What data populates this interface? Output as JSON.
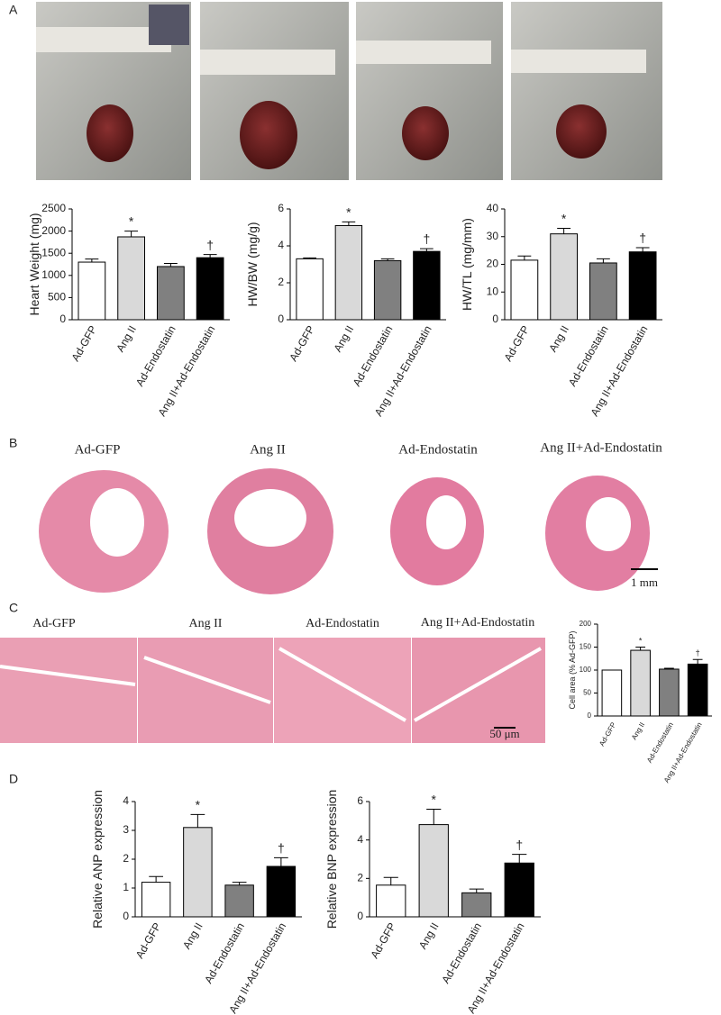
{
  "panel_labels": [
    "A",
    "B",
    "C",
    "D"
  ],
  "panel_b": {
    "labels": [
      "Ad-GFP",
      "Ang II",
      "Ad-Endostatin",
      "Ang II+Ad-Endostatin"
    ],
    "scale_bar": "1 mm"
  },
  "panel_c": {
    "labels": [
      "Ad-GFP",
      "Ang II",
      "Ad-Endostatin",
      "Ang II+Ad-Endostatin"
    ],
    "scale_bar": "50 μm"
  },
  "chart_data": [
    {
      "type": "bar",
      "ylabel": "Heart Weight (mg)",
      "categories": [
        "Ad-GFP",
        "Ang II",
        "Ad-Endostatin",
        "Ang II+Ad-Endostatin"
      ],
      "values": [
        1300,
        1870,
        1200,
        1400
      ],
      "errors": [
        70,
        130,
        70,
        70
      ],
      "colors": [
        "#ffffff",
        "#d9d9d9",
        "#808080",
        "#000000"
      ],
      "markers": [
        null,
        "*",
        null,
        "†"
      ],
      "ylim": [
        0,
        2500
      ],
      "yticks": [
        0,
        500,
        1000,
        1500,
        2000,
        2500
      ]
    },
    {
      "type": "bar",
      "ylabel": "HW/BW (mg/g)",
      "categories": [
        "Ad-GFP",
        "Ang II",
        "Ad-Endostatin",
        "Ang II+Ad-Endostatin"
      ],
      "values": [
        3.3,
        5.1,
        3.2,
        3.7
      ],
      "errors": [
        0.05,
        0.2,
        0.1,
        0.15
      ],
      "colors": [
        "#ffffff",
        "#d9d9d9",
        "#808080",
        "#000000"
      ],
      "markers": [
        null,
        "*",
        null,
        "†"
      ],
      "ylim": [
        0,
        6
      ],
      "yticks": [
        0,
        2,
        4,
        6
      ]
    },
    {
      "type": "bar",
      "ylabel": "HW/TL (mg/mm)",
      "categories": [
        "Ad-GFP",
        "Ang II",
        "Ad-Endostatin",
        "Ang II+Ad-Endostatin"
      ],
      "values": [
        21.5,
        31,
        20.5,
        24.5
      ],
      "errors": [
        1.5,
        2,
        1.5,
        1.5
      ],
      "colors": [
        "#ffffff",
        "#d9d9d9",
        "#808080",
        "#000000"
      ],
      "markers": [
        null,
        "*",
        null,
        "†"
      ],
      "ylim": [
        0,
        40
      ],
      "yticks": [
        0,
        10,
        20,
        30,
        40
      ]
    },
    {
      "type": "bar",
      "ylabel": "Cell area (% Ad-GFP)",
      "categories": [
        "Ad-GFP",
        "Ang II",
        "Ad-Endostatin",
        "Ang II+Ad-Endostatin"
      ],
      "values": [
        100,
        143,
        102,
        113
      ],
      "errors": [
        0,
        7,
        2,
        10
      ],
      "colors": [
        "#ffffff",
        "#d9d9d9",
        "#808080",
        "#000000"
      ],
      "markers": [
        null,
        "*",
        null,
        "†"
      ],
      "ylim": [
        0,
        200
      ],
      "yticks": [
        0,
        50,
        100,
        150,
        200
      ]
    },
    {
      "type": "bar",
      "ylabel": "Relative ANP expression",
      "categories": [
        "Ad-GFP",
        "Ang II",
        "Ad-Endostatin",
        "Ang II+Ad-Endostatin"
      ],
      "values": [
        1.2,
        3.1,
        1.1,
        1.75
      ],
      "errors": [
        0.2,
        0.45,
        0.1,
        0.3
      ],
      "colors": [
        "#ffffff",
        "#d9d9d9",
        "#808080",
        "#000000"
      ],
      "markers": [
        null,
        "*",
        null,
        "†"
      ],
      "ylim": [
        0,
        4
      ],
      "yticks": [
        0,
        1,
        2,
        3,
        4
      ]
    },
    {
      "type": "bar",
      "ylabel": "Relative BNP expression",
      "categories": [
        "Ad-GFP",
        "Ang II",
        "Ad-Endostatin",
        "Ang II+Ad-Endostatin"
      ],
      "values": [
        1.65,
        4.8,
        1.25,
        2.8
      ],
      "errors": [
        0.4,
        0.8,
        0.2,
        0.45
      ],
      "colors": [
        "#ffffff",
        "#d9d9d9",
        "#808080",
        "#000000"
      ],
      "markers": [
        null,
        "*",
        null,
        "†"
      ],
      "ylim": [
        0,
        6
      ],
      "yticks": [
        0,
        2,
        4,
        6
      ]
    }
  ]
}
